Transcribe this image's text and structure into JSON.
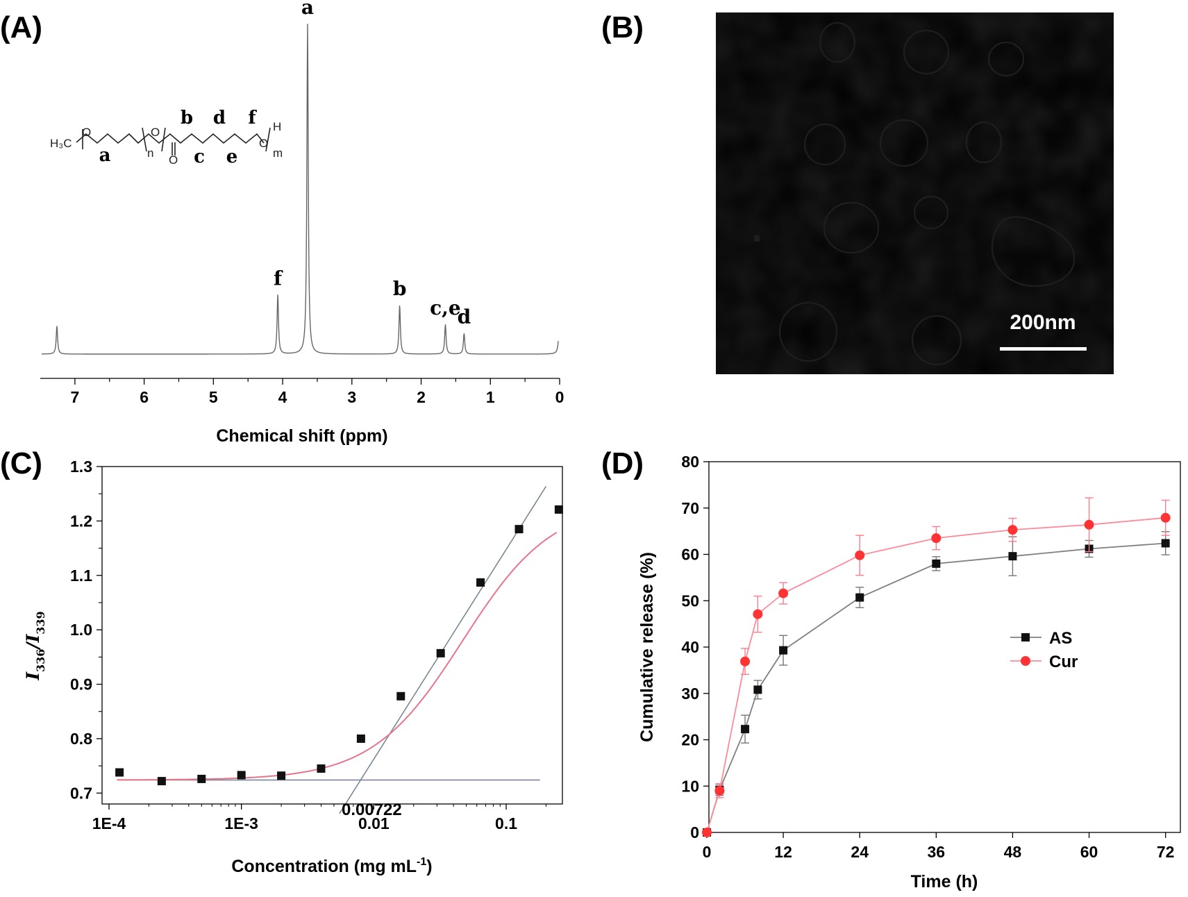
{
  "panel_labels": {
    "a": "(A)",
    "b": "(B)",
    "c": "(C)",
    "d": "(D)"
  },
  "chart_data": [
    {
      "id": "A",
      "type": "line",
      "xlabel": "Chemical shift (ppm)",
      "ylabel": "",
      "xlim": [
        7.5,
        0
      ],
      "x_ticks": [
        "7",
        "6",
        "5",
        "4",
        "3",
        "2",
        "1",
        "0"
      ],
      "x_tick_values": [
        7,
        6,
        5,
        4,
        3,
        2,
        1,
        0
      ],
      "color": "#666666",
      "peaks": [
        {
          "label": "",
          "x": 7.26,
          "height": 0.085
        },
        {
          "label": "f",
          "x": 4.07,
          "height": 0.18
        },
        {
          "label": "a",
          "x": 3.64,
          "height": 1.0
        },
        {
          "label": "b",
          "x": 2.31,
          "height": 0.148
        },
        {
          "label": "c,e",
          "x": 1.65,
          "height": 0.09
        },
        {
          "label": "d",
          "x": 1.38,
          "height": 0.063
        },
        {
          "label": "",
          "x": 0.0,
          "height": 0.15
        }
      ],
      "structure": {
        "h3c": "H₃C",
        "o_text": "O",
        "n_sub": "n",
        "m_sub": "m",
        "h_text": "H",
        "labels_top": [
          "b",
          "d",
          "f"
        ],
        "labels_bottom": [
          "a",
          "c",
          "e"
        ]
      }
    },
    {
      "id": "C",
      "type": "scatter",
      "xlabel": "Concentration (mg mL",
      "xlabel_sup": "-1",
      "xlabel_end": ")",
      "ylabel_main": "I",
      "ylabel_sub1": "336",
      "ylabel_sep": "/I",
      "ylabel_sub2": "339",
      "xscale": "log",
      "xlim": [
        0.0001,
        0.3
      ],
      "ylim": [
        0.68,
        1.3
      ],
      "x_ticks": [
        "1E-4",
        "1E-3",
        "0.01",
        "0.1"
      ],
      "x_tick_values": [
        0.0001,
        0.001,
        0.01,
        0.1
      ],
      "y_ticks": [
        "0.7",
        "0.8",
        "0.9",
        "1.0",
        "1.1",
        "1.2",
        "1.3"
      ],
      "y_tick_values": [
        0.7,
        0.8,
        0.9,
        1.0,
        1.1,
        1.2,
        1.3
      ],
      "points": [
        {
          "x": 0.00012,
          "y": 0.738
        },
        {
          "x": 0.00025,
          "y": 0.722
        },
        {
          "x": 0.0005,
          "y": 0.726
        },
        {
          "x": 0.001,
          "y": 0.733
        },
        {
          "x": 0.002,
          "y": 0.732
        },
        {
          "x": 0.004,
          "y": 0.745
        },
        {
          "x": 0.008,
          "y": 0.8
        },
        {
          "x": 0.016,
          "y": 0.878
        },
        {
          "x": 0.032,
          "y": 0.957
        },
        {
          "x": 0.064,
          "y": 1.087
        },
        {
          "x": 0.125,
          "y": 1.185
        },
        {
          "x": 0.25,
          "y": 1.221
        }
      ],
      "fit_color": "#e8748a",
      "baseline_y": 0.724,
      "cmc_text": "0.00722",
      "cmc_value": 0.00722
    },
    {
      "id": "D",
      "type": "line",
      "xlabel": "Time (h)",
      "ylabel": "Cumulative release (%)",
      "xlim": [
        0,
        74
      ],
      "ylim": [
        0,
        80
      ],
      "x_ticks": [
        "0",
        "12",
        "24",
        "36",
        "48",
        "60",
        "72"
      ],
      "x_tick_values": [
        0,
        12,
        24,
        36,
        48,
        60,
        72
      ],
      "y_ticks": [
        "0",
        "10",
        "20",
        "30",
        "40",
        "50",
        "60",
        "70",
        "80"
      ],
      "y_tick_values": [
        0,
        10,
        20,
        30,
        40,
        50,
        60,
        70,
        80
      ],
      "x": [
        0,
        2,
        6,
        8,
        12,
        24,
        36,
        48,
        60,
        72
      ],
      "series": [
        {
          "name": "AS",
          "color": "#808080",
          "marker": "square",
          "values": [
            0,
            9.2,
            22.3,
            30.8,
            39.3,
            50.7,
            58.0,
            59.6,
            61.2,
            62.4
          ],
          "errors": [
            0,
            1.2,
            3.0,
            2.0,
            3.2,
            2.2,
            1.5,
            4.2,
            1.8,
            2.5
          ]
        },
        {
          "name": "Cur",
          "color": "#ff3333",
          "marker": "circle",
          "values": [
            0,
            9.0,
            36.9,
            47.1,
            51.6,
            59.8,
            63.5,
            65.3,
            66.4,
            67.9
          ],
          "errors": [
            0,
            1.5,
            2.8,
            3.9,
            2.3,
            4.3,
            2.5,
            2.5,
            5.8,
            3.8
          ]
        }
      ],
      "legend_position": "center-right"
    }
  ],
  "tem_image": {
    "scale_text": "200nm",
    "background_color": "#8e9290"
  }
}
